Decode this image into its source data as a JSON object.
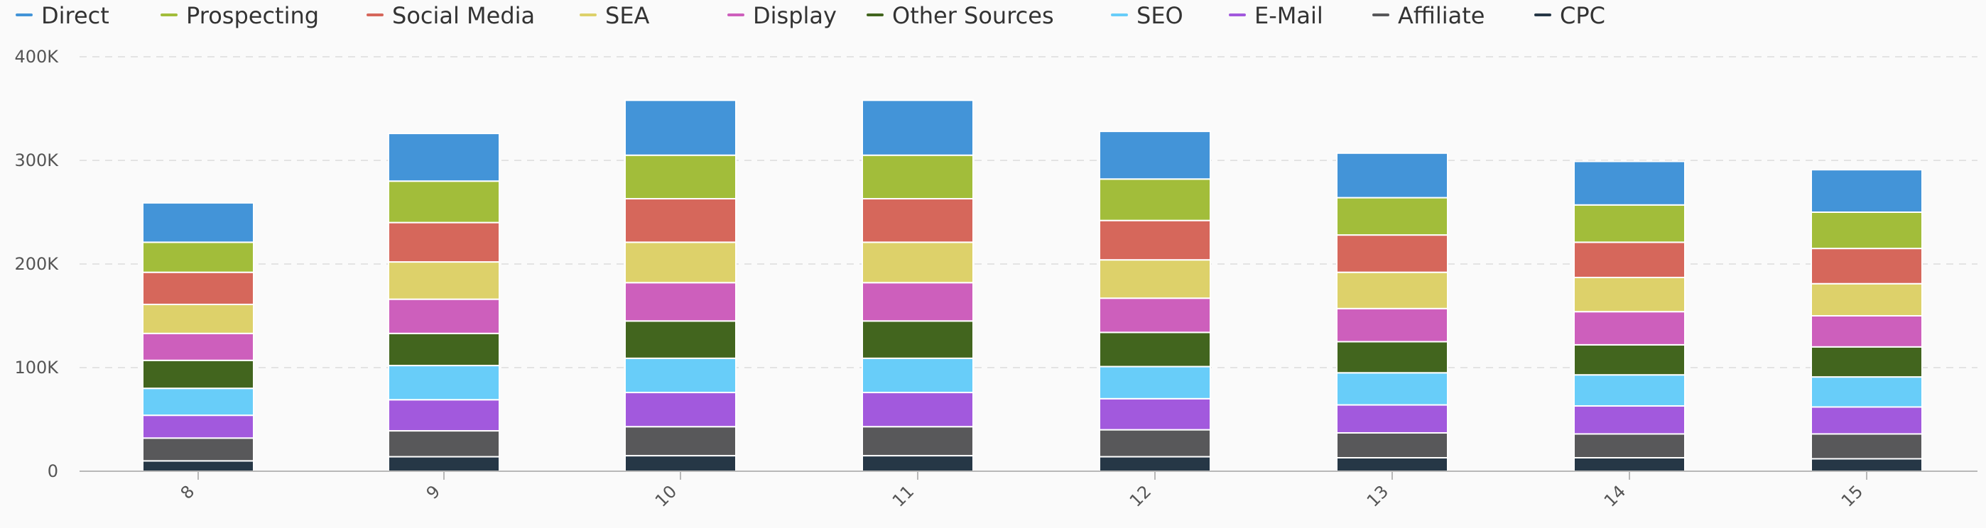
{
  "chart_data": {
    "type": "bar",
    "stacked": true,
    "categories": [
      "8",
      "9",
      "10",
      "11",
      "12",
      "13",
      "14",
      "15"
    ],
    "ylim": [
      0,
      400000
    ],
    "yticks": [
      {
        "value": 0,
        "label": "0"
      },
      {
        "value": 100000,
        "label": "100K"
      },
      {
        "value": 200000,
        "label": "200K"
      },
      {
        "value": 300000,
        "label": "300K"
      },
      {
        "value": 400000,
        "label": "400K"
      }
    ],
    "grid": true,
    "legend_position": "top",
    "series": [
      {
        "name": "CPC",
        "color": "#263746",
        "values": [
          10000,
          14000,
          15000,
          15000,
          14000,
          13000,
          13000,
          12000
        ]
      },
      {
        "name": "Affiliate",
        "color": "#58585a",
        "values": [
          22000,
          25000,
          28000,
          28000,
          26000,
          24000,
          23000,
          24000
        ]
      },
      {
        "name": "E-Mail",
        "color": "#a259dd",
        "values": [
          22000,
          30000,
          33000,
          33000,
          30000,
          27000,
          27000,
          26000
        ]
      },
      {
        "name": "SEO",
        "color": "#68cdf9",
        "values": [
          26000,
          33000,
          33000,
          33000,
          31000,
          31000,
          30000,
          29000
        ]
      },
      {
        "name": "Other Sources",
        "color": "#42651e",
        "values": [
          27000,
          31000,
          36000,
          36000,
          33000,
          30000,
          29000,
          29000
        ]
      },
      {
        "name": "Display",
        "color": "#cd5fbc",
        "values": [
          26000,
          33000,
          37000,
          37000,
          33000,
          32000,
          32000,
          30000
        ]
      },
      {
        "name": "SEA",
        "color": "#ddd16a",
        "values": [
          28000,
          36000,
          39000,
          39000,
          37000,
          35000,
          33000,
          31000
        ]
      },
      {
        "name": "Social Media",
        "color": "#d6675b",
        "values": [
          31000,
          38000,
          42000,
          42000,
          38000,
          36000,
          34000,
          34000
        ]
      },
      {
        "name": "Prospecting",
        "color": "#a2bd3a",
        "values": [
          29000,
          40000,
          42000,
          42000,
          40000,
          36000,
          36000,
          35000
        ]
      },
      {
        "name": "Direct",
        "color": "#4394d8",
        "values": [
          38000,
          46000,
          53000,
          53000,
          46000,
          43000,
          42000,
          41000
        ]
      }
    ],
    "legend_order": [
      "Direct",
      "Prospecting",
      "Social Media",
      "SEA",
      "Display",
      "Other Sources",
      "SEO",
      "E-Mail",
      "Affiliate",
      "CPC"
    ]
  }
}
